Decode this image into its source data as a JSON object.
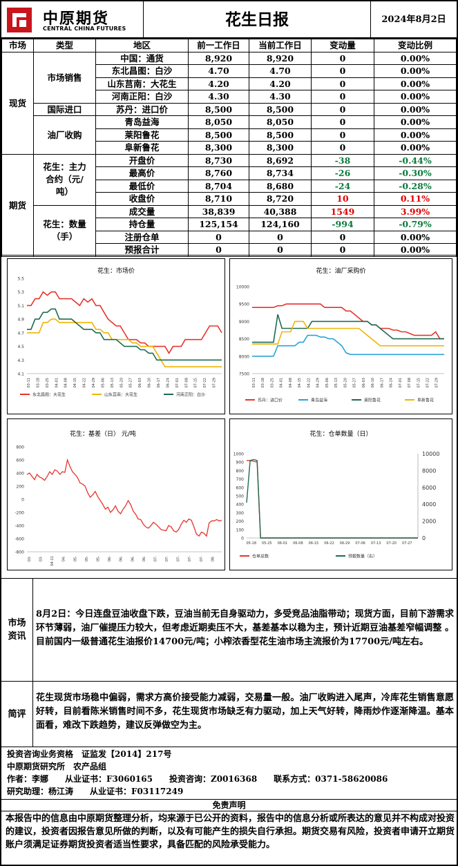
{
  "header": {
    "logo_cn": "中原期货",
    "logo_en": "CENTRAL CHINA FUTURES",
    "title": "花生日报",
    "date": "2024年8月2日"
  },
  "table": {
    "columns": [
      "市场",
      "类型",
      "地区",
      "前一工作日",
      "当前工作日",
      "变动量",
      "变动比例"
    ],
    "groups": {
      "spot": "现货",
      "futures": "期货",
      "market_sales": "市场销售",
      "intl_import": "国际进口",
      "oil_mill": "油厂收购",
      "contract": "花生：主力合约（元/吨）",
      "quantity": "花生：数量（手）"
    },
    "rows": [
      {
        "region": "中国：通货",
        "prev": "8,920",
        "curr": "8,920",
        "chg": "0",
        "pct": "0.00%",
        "color": "none"
      },
      {
        "region": "东北昌图：白沙",
        "prev": "4.70",
        "curr": "4.70",
        "chg": "0",
        "pct": "0.00%",
        "color": "none"
      },
      {
        "region": "山东莒南：大花生",
        "prev": "4.20",
        "curr": "4.20",
        "chg": "0",
        "pct": "0.00%",
        "color": "none"
      },
      {
        "region": "河南正阳：白沙",
        "prev": "4.30",
        "curr": "4.30",
        "chg": "0",
        "pct": "0.00%",
        "color": "none"
      },
      {
        "region": "苏丹：进口价",
        "prev": "8,500",
        "curr": "8,500",
        "chg": "0",
        "pct": "0.00%",
        "color": "none"
      },
      {
        "region": "青岛益海",
        "prev": "8,050",
        "curr": "8,050",
        "chg": "0",
        "pct": "0.00%",
        "color": "none"
      },
      {
        "region": "莱阳鲁花",
        "prev": "8,500",
        "curr": "8,500",
        "chg": "0",
        "pct": "0.00%",
        "color": "none"
      },
      {
        "region": "阜新鲁花",
        "prev": "8,300",
        "curr": "8,300",
        "chg": "0",
        "pct": "0.00%",
        "color": "none"
      },
      {
        "region": "开盘价",
        "prev": "8,730",
        "curr": "8,692",
        "chg": "-38",
        "pct": "-0.44%",
        "color": "green"
      },
      {
        "region": "最高价",
        "prev": "8,760",
        "curr": "8,734",
        "chg": "-26",
        "pct": "-0.30%",
        "color": "green"
      },
      {
        "region": "最低价",
        "prev": "8,704",
        "curr": "8,680",
        "chg": "-24",
        "pct": "-0.28%",
        "color": "green"
      },
      {
        "region": "收盘价",
        "prev": "8,710",
        "curr": "8,720",
        "chg": "10",
        "pct": "0.11%",
        "color": "red"
      },
      {
        "region": "成交量",
        "prev": "38,839",
        "curr": "40,388",
        "chg": "1549",
        "pct": "3.99%",
        "color": "red"
      },
      {
        "region": "持仓量",
        "prev": "125,154",
        "curr": "124,160",
        "chg": "-994",
        "pct": "-0.79%",
        "color": "green"
      },
      {
        "region": "注册仓单",
        "prev": "0",
        "curr": "0",
        "chg": "0",
        "pct": "0.00%",
        "color": "none"
      },
      {
        "region": "预报合计",
        "prev": "0",
        "curr": "0",
        "chg": "0",
        "pct": "0.00%",
        "color": "none"
      }
    ]
  },
  "chart_data": [
    {
      "type": "line",
      "title": "花生：市场价",
      "ylim": [
        4.1,
        5.5
      ],
      "yticks": [
        "5.5",
        "5.3",
        "5.1",
        "4.9",
        "4.7",
        "4.5",
        "4.3",
        "4.1"
      ],
      "xticks": [
        "03-11",
        "03-18",
        "03-25",
        "04-01",
        "04-08",
        "04-15",
        "04-22",
        "04-29",
        "05-06",
        "05-13",
        "05-20",
        "05-27",
        "06-03",
        "06-10",
        "06-17",
        "06-24",
        "07-01",
        "07-08",
        "07-15",
        "07-22",
        "07-29"
      ],
      "series": [
        {
          "name": "东北昌图：大花生",
          "color": "#e8322d",
          "values": [
            5.1,
            5.1,
            5.2,
            5.2,
            5.3,
            5.25,
            5.3,
            5.3,
            5.2,
            5.2,
            5.2,
            5.2,
            5.15,
            5.1,
            5.2,
            5.15,
            5.2,
            5.1,
            5.1,
            5.0,
            4.9,
            4.85,
            4.8,
            4.8,
            4.7,
            4.6,
            4.6,
            4.6,
            4.55,
            4.55,
            4.5,
            4.5,
            4.5,
            4.5,
            4.5,
            4.4,
            4.5,
            4.5,
            4.5,
            4.6,
            4.6,
            4.6,
            4.6,
            4.6,
            4.7,
            4.8,
            4.8,
            4.8,
            4.7
          ]
        },
        {
          "name": "山东莒南：大花生",
          "color": "#f0b400",
          "values": [
            4.7,
            4.7,
            4.7,
            4.7,
            4.85,
            4.85,
            4.9,
            4.9,
            4.85,
            4.85,
            4.85,
            4.85,
            4.85,
            4.85,
            4.85,
            4.85,
            4.85,
            4.75,
            4.75,
            4.7,
            4.7,
            4.6,
            4.6,
            4.6,
            4.6,
            4.6,
            4.55,
            4.55,
            4.5,
            4.5,
            4.5,
            4.5,
            4.4,
            4.3,
            4.2,
            4.2,
            4.2,
            4.2,
            4.2,
            4.2,
            4.2,
            4.2,
            4.2,
            4.2,
            4.2,
            4.2,
            4.2,
            4.2,
            4.2
          ]
        },
        {
          "name": "河南正阳：白沙",
          "color": "#1d6b4f",
          "values": [
            4.75,
            4.75,
            4.9,
            4.9,
            5.0,
            5.0,
            5.05,
            5.05,
            4.9,
            4.9,
            4.9,
            4.9,
            4.85,
            4.8,
            4.75,
            4.75,
            4.75,
            4.7,
            4.7,
            4.6,
            4.6,
            4.6,
            4.6,
            4.55,
            4.5,
            4.5,
            4.5,
            4.5,
            4.45,
            4.45,
            4.4,
            4.4,
            4.3,
            4.3,
            4.3,
            4.3,
            4.3,
            4.3,
            4.3,
            4.3,
            4.3,
            4.3,
            4.3,
            4.3,
            4.3,
            4.3,
            4.3,
            4.3,
            4.3
          ]
        }
      ]
    },
    {
      "type": "line",
      "title": "花生：油厂采购价",
      "ylim": [
        7500,
        10000
      ],
      "yticks": [
        "10000",
        "9500",
        "9000",
        "8500",
        "8000",
        "7500"
      ],
      "xticks": [
        "03-11",
        "03-18",
        "03-25",
        "04-01",
        "04-08",
        "04-15",
        "04-22",
        "04-29",
        "05-06",
        "05-13",
        "05-20",
        "05-27",
        "06-03",
        "06-10",
        "06-17",
        "06-24",
        "07-01",
        "07-08",
        "07-15",
        "07-22",
        "07-29"
      ],
      "series": [
        {
          "name": "苏丹：进口价",
          "color": "#e8322d",
          "values": [
            9400,
            9400,
            9400,
            9400,
            9400,
            9400,
            9450,
            9450,
            9500,
            9500,
            9500,
            9500,
            9500,
            9500,
            9500,
            9500,
            9500,
            9400,
            9400,
            9400,
            9400,
            9400,
            9300,
            9300,
            9200,
            9100,
            9000,
            9000,
            8900,
            8900,
            8800,
            8800,
            8800,
            8750,
            8750,
            8700,
            8700,
            8650,
            8600,
            8600,
            8600,
            8600,
            8600,
            8700,
            8500,
            8500
          ]
        },
        {
          "name": "青岛益海",
          "color": "#29a3d8",
          "values": [
            8000,
            8000,
            8000,
            8000,
            8000,
            8000,
            8300,
            8300,
            8300,
            8300,
            8300,
            8400,
            8400,
            8600,
            8600,
            8600,
            8550,
            8550,
            8500,
            8500,
            8400,
            8300,
            8100,
            8050,
            8050,
            8050,
            8050,
            8050,
            8050,
            8050,
            8050,
            8050,
            8050,
            8050,
            8050,
            8050,
            8050,
            8050,
            8050,
            8050,
            8050,
            8050,
            8050,
            8050,
            8050,
            8050
          ]
        },
        {
          "name": "莱阳鲁花",
          "color": "#1d6b4f",
          "values": [
            8400,
            8400,
            8400,
            8400,
            8400,
            8400,
            9200,
            8800,
            8800,
            8800,
            8800,
            8800,
            8800,
            8800,
            9000,
            9000,
            9000,
            9000,
            9000,
            9000,
            9000,
            9000,
            9000,
            9000,
            9000,
            9000,
            9000,
            9000,
            8900,
            8900,
            8800,
            8700,
            8600,
            8500,
            8500,
            8500,
            8500,
            8500,
            8500,
            8500,
            8500,
            8500,
            8500,
            8500,
            8500,
            8500
          ]
        },
        {
          "name": "阜新鲁花",
          "color": "#f0b400",
          "values": [
            8350,
            8350,
            8350,
            8350,
            8350,
            8350,
            8350,
            8700,
            8700,
            8700,
            9000,
            9000,
            9000,
            8800,
            8800,
            8800,
            8800,
            8800,
            8800,
            8800,
            8800,
            8800,
            8800,
            8800,
            8800,
            8800,
            8700,
            8600,
            8500,
            8400,
            8300,
            8300,
            8300,
            8300,
            8300,
            8300,
            8300,
            8300,
            8300,
            8300,
            8300,
            8300,
            8300,
            8300,
            8300,
            8300
          ]
        }
      ]
    },
    {
      "type": "line",
      "title": "花生：基差（日） 元/吨",
      "ylim": [
        -800,
        800
      ],
      "yticks": [
        "800",
        "600",
        "400",
        "200",
        "0",
        "-200",
        "-400",
        "-600",
        "-800"
      ],
      "xticks": [
        "03-",
        "03-",
        "04-11",
        "04-",
        "05-",
        "05-",
        "05-",
        "06-",
        "06-",
        "06-",
        "06-",
        "07-",
        "07-",
        "07-",
        "07-",
        "07-",
        "08-"
      ],
      "series": [
        {
          "name": "基差",
          "color": "#e8322d",
          "values": [
            380,
            400,
            350,
            300,
            380,
            340,
            320,
            290,
            350,
            420,
            380,
            450,
            430,
            380,
            420,
            410,
            600,
            500,
            420,
            380,
            330,
            250,
            230,
            200,
            100,
            30,
            70,
            120,
            40,
            -20,
            -80,
            -150,
            -120,
            -200,
            -160,
            -100,
            -180,
            -220,
            -150,
            -100,
            -20,
            -80,
            -180,
            -230,
            -300,
            -310,
            -380,
            -420,
            -440,
            -400,
            -350,
            -380,
            -420,
            -460,
            -470,
            -480,
            -400,
            -420,
            -480,
            -500,
            -460,
            -380,
            -320,
            -350,
            -300,
            -320,
            -420,
            -530,
            -560,
            -500,
            -520,
            -560,
            -360,
            -330,
            -330,
            -310,
            -330,
            -320
          ]
        }
      ]
    },
    {
      "type": "line",
      "title": "花生：仓单数量（日）",
      "ylim": [
        0,
        1000
      ],
      "yticks": [
        "1000",
        "900",
        "800",
        "700",
        "600",
        "500",
        "400",
        "300",
        "200",
        "100",
        "0"
      ],
      "y2lim": [
        0,
        10000
      ],
      "y2ticks": [
        "10000",
        "8000",
        "6000",
        "4000",
        "2000",
        "0"
      ],
      "xticks": [
        "05-18",
        "05-25",
        "06-01",
        "06-08",
        "06-15",
        "06-22",
        "06-29",
        "07-06",
        "07-13",
        "07-20",
        "07-27"
      ],
      "series": [
        {
          "name": "仓单总数",
          "color": "#e8322d",
          "values": [
            920,
            920,
            910,
            900,
            0,
            0,
            0,
            0,
            0,
            0,
            0,
            0,
            0,
            0,
            0,
            0,
            0,
            0,
            0,
            0,
            0,
            0,
            0,
            0,
            0,
            0,
            0,
            0,
            0,
            0,
            0,
            0,
            0,
            0,
            0,
            0,
            0,
            0,
            0,
            0,
            0,
            0,
            0,
            0,
            0,
            0,
            0,
            0,
            0,
            0
          ]
        },
        {
          "name": "预报数量（右）",
          "color": "#1d6b4f",
          "values": [
            4200,
            9200,
            9300,
            9200,
            0,
            0,
            0,
            0,
            0,
            0,
            0,
            0,
            0,
            0,
            0,
            0,
            0,
            0,
            0,
            0,
            0,
            0,
            0,
            0,
            0,
            0,
            0,
            0,
            0,
            0,
            0,
            0,
            0,
            0,
            0,
            0,
            0,
            0,
            0,
            0,
            0,
            0,
            0,
            0,
            0,
            0,
            0,
            0,
            0,
            0
          ]
        }
      ]
    }
  ],
  "market_info": {
    "label": "市场资讯",
    "text": "8月2日：今日连盘豆油收盘下跌，豆油当前无自身驱动力，多受竞品油脂带动；现货方面，目前下游需求环节薄弱，油厂催提压力较大，但考虑近期卖压不大，基差基本以稳为主，预计近期豆油基差窄幅调整 。目前国内一级普通花生油报价14700元/吨；小榨浓香型花生油市场主流报价为17700元/吨左右。"
  },
  "comment": {
    "label": "简评",
    "text": "花生现货市场稳中偏弱，需求方高价接受能力减弱，交易量一般。油厂收购进入尾声，冷库花生销售意愿好转，目前看陈米销售时间不多，花生现货市场缺乏有力驱动，加上天气好转，降雨炒作逐渐降温。基本面看，难改下跌趋势，建议反弹做空为主。"
  },
  "footer": {
    "line1": "投资咨询业务资格　证监发【2014】217号",
    "line2": "中原期货研究所　农产品组",
    "line3": "作者：李娜　　从业证书：F3060165　　投资咨询：Z0016368　　联系方式：0371-58620086",
    "line4": "研究助理：杨江涛　　从业证书：F03117249",
    "disclaimer_title": "免责声明",
    "disclaimer": "本报告中的信息由中原期货整理分析，均来源于已公开的资料，报告中的信息分析或所表达的意见并不构成对投资的建议，投资者因报告意见所做的判断，以及有可能产生的损失自行承担。期货交易有风险，投资者申请开立期货账户须满足证券期货投资者适当性要求，具备匹配的风险承受能力。"
  }
}
